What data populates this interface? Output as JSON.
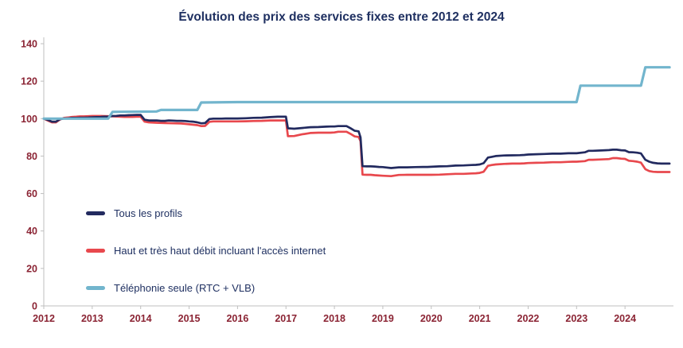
{
  "chart_data": {
    "type": "line",
    "title": "Évolution des prix des services fixes entre 2012 et 2024",
    "xlabel": "",
    "ylabel": "",
    "xlim": [
      2012,
      2025
    ],
    "ylim": [
      0,
      140
    ],
    "x_ticks": [
      2012,
      2013,
      2014,
      2015,
      2016,
      2017,
      2018,
      2019,
      2020,
      2021,
      2022,
      2023,
      2024
    ],
    "y_ticks": [
      0,
      20,
      40,
      60,
      80,
      100,
      120,
      140
    ],
    "grid": false,
    "legend_position": "inside-bottom-left",
    "colors": {
      "title": "#1f3061",
      "axis_label": "#8b2434",
      "axis_line": "#bfbfbf",
      "legend_text": "#1f3061"
    },
    "series": [
      {
        "name": "Tous les profils",
        "color": "#222a5f",
        "points": [
          [
            2012.0,
            100
          ],
          [
            2012.08,
            99.3
          ],
          [
            2012.17,
            98.4
          ],
          [
            2012.25,
            98.4
          ],
          [
            2012.33,
            99.6
          ],
          [
            2012.42,
            100.1
          ],
          [
            2012.5,
            100.2
          ],
          [
            2012.58,
            100.4
          ],
          [
            2012.67,
            100.4
          ],
          [
            2012.75,
            100.5
          ],
          [
            2012.83,
            100.5
          ],
          [
            2012.92,
            100.6
          ],
          [
            2013.0,
            100.7
          ],
          [
            2013.08,
            100.8
          ],
          [
            2013.17,
            100.9
          ],
          [
            2013.25,
            101.0
          ],
          [
            2013.33,
            101.1
          ],
          [
            2013.42,
            101.4
          ],
          [
            2013.5,
            101.5
          ],
          [
            2013.58,
            101.7
          ],
          [
            2013.67,
            101.7
          ],
          [
            2013.75,
            101.8
          ],
          [
            2013.83,
            101.9
          ],
          [
            2013.92,
            102.0
          ],
          [
            2014.0,
            102.0
          ],
          [
            2014.08,
            99.4
          ],
          [
            2014.17,
            99.0
          ],
          [
            2014.25,
            99.0
          ],
          [
            2014.33,
            99.0
          ],
          [
            2014.42,
            98.8
          ],
          [
            2014.5,
            98.8
          ],
          [
            2014.58,
            99.0
          ],
          [
            2014.67,
            98.9
          ],
          [
            2014.75,
            98.8
          ],
          [
            2014.83,
            98.8
          ],
          [
            2014.92,
            98.7
          ],
          [
            2015.0,
            98.5
          ],
          [
            2015.08,
            98.4
          ],
          [
            2015.17,
            98.0
          ],
          [
            2015.25,
            97.5
          ],
          [
            2015.33,
            97.6
          ],
          [
            2015.42,
            99.8
          ],
          [
            2015.5,
            100.0
          ],
          [
            2015.58,
            100.0
          ],
          [
            2015.67,
            100.0
          ],
          [
            2015.75,
            100.1
          ],
          [
            2015.83,
            100.1
          ],
          [
            2015.92,
            100.1
          ],
          [
            2016.0,
            100.1
          ],
          [
            2016.17,
            100.2
          ],
          [
            2016.33,
            100.4
          ],
          [
            2016.5,
            100.5
          ],
          [
            2016.67,
            100.8
          ],
          [
            2016.83,
            101.0
          ],
          [
            2016.92,
            101.0
          ],
          [
            2017.0,
            101.0
          ],
          [
            2017.04,
            94.8
          ],
          [
            2017.17,
            94.6
          ],
          [
            2017.33,
            95.0
          ],
          [
            2017.5,
            95.4
          ],
          [
            2017.67,
            95.5
          ],
          [
            2017.83,
            95.7
          ],
          [
            2017.92,
            95.8
          ],
          [
            2018.0,
            95.8
          ],
          [
            2018.08,
            96.0
          ],
          [
            2018.17,
            96.0
          ],
          [
            2018.25,
            96.0
          ],
          [
            2018.33,
            94.9
          ],
          [
            2018.42,
            93.5
          ],
          [
            2018.5,
            93.2
          ],
          [
            2018.54,
            90.0
          ],
          [
            2018.58,
            74.6
          ],
          [
            2018.67,
            74.5
          ],
          [
            2018.75,
            74.5
          ],
          [
            2018.83,
            74.4
          ],
          [
            2018.92,
            74.2
          ],
          [
            2019.0,
            74.1
          ],
          [
            2019.17,
            73.6
          ],
          [
            2019.33,
            74.0
          ],
          [
            2019.5,
            74.0
          ],
          [
            2019.67,
            74.1
          ],
          [
            2019.83,
            74.2
          ],
          [
            2019.92,
            74.2
          ],
          [
            2020.0,
            74.3
          ],
          [
            2020.17,
            74.5
          ],
          [
            2020.33,
            74.6
          ],
          [
            2020.5,
            74.9
          ],
          [
            2020.67,
            75.0
          ],
          [
            2020.83,
            75.2
          ],
          [
            2020.92,
            75.3
          ],
          [
            2021.0,
            75.5
          ],
          [
            2021.08,
            76.2
          ],
          [
            2021.17,
            79.2
          ],
          [
            2021.25,
            79.6
          ],
          [
            2021.33,
            80.0
          ],
          [
            2021.5,
            80.3
          ],
          [
            2021.67,
            80.4
          ],
          [
            2021.83,
            80.5
          ],
          [
            2021.92,
            80.6
          ],
          [
            2022.0,
            80.8
          ],
          [
            2022.17,
            81.0
          ],
          [
            2022.33,
            81.1
          ],
          [
            2022.5,
            81.3
          ],
          [
            2022.67,
            81.3
          ],
          [
            2022.83,
            81.5
          ],
          [
            2022.92,
            81.5
          ],
          [
            2023.0,
            81.5
          ],
          [
            2023.17,
            82.0
          ],
          [
            2023.25,
            82.8
          ],
          [
            2023.33,
            82.8
          ],
          [
            2023.5,
            83.0
          ],
          [
            2023.67,
            83.2
          ],
          [
            2023.75,
            83.4
          ],
          [
            2023.83,
            83.4
          ],
          [
            2023.92,
            83.1
          ],
          [
            2024.0,
            83.0
          ],
          [
            2024.08,
            82.1
          ],
          [
            2024.17,
            82.0
          ],
          [
            2024.25,
            81.8
          ],
          [
            2024.33,
            81.4
          ],
          [
            2024.42,
            78.0
          ],
          [
            2024.5,
            77.0
          ],
          [
            2024.58,
            76.4
          ],
          [
            2024.67,
            76.1
          ],
          [
            2024.75,
            76.0
          ],
          [
            2024.83,
            76.0
          ],
          [
            2024.92,
            76.0
          ]
        ]
      },
      {
        "name": "Haut et très haut débit incluant l'accès internet",
        "color": "#e8484d",
        "points": [
          [
            2012.0,
            100
          ],
          [
            2012.08,
            99.0
          ],
          [
            2012.17,
            98.0
          ],
          [
            2012.25,
            98.0
          ],
          [
            2012.33,
            99.5
          ],
          [
            2012.42,
            100.4
          ],
          [
            2012.5,
            100.6
          ],
          [
            2012.58,
            100.9
          ],
          [
            2012.67,
            101.0
          ],
          [
            2012.75,
            101.2
          ],
          [
            2012.83,
            101.2
          ],
          [
            2012.92,
            101.3
          ],
          [
            2013.0,
            101.4
          ],
          [
            2013.17,
            101.4
          ],
          [
            2013.33,
            101.3
          ],
          [
            2013.5,
            101.1
          ],
          [
            2013.67,
            100.9
          ],
          [
            2013.83,
            100.9
          ],
          [
            2013.92,
            101.0
          ],
          [
            2014.0,
            101.0
          ],
          [
            2014.08,
            98.4
          ],
          [
            2014.17,
            98.0
          ],
          [
            2014.33,
            97.8
          ],
          [
            2014.5,
            97.6
          ],
          [
            2014.67,
            97.5
          ],
          [
            2014.83,
            97.4
          ],
          [
            2014.92,
            97.2
          ],
          [
            2015.0,
            97.0
          ],
          [
            2015.17,
            96.5
          ],
          [
            2015.25,
            96.0
          ],
          [
            2015.33,
            96.1
          ],
          [
            2015.42,
            98.3
          ],
          [
            2015.5,
            98.5
          ],
          [
            2015.67,
            98.5
          ],
          [
            2015.83,
            98.5
          ],
          [
            2015.92,
            98.5
          ],
          [
            2016.0,
            98.5
          ],
          [
            2016.17,
            98.6
          ],
          [
            2016.33,
            98.7
          ],
          [
            2016.5,
            98.8
          ],
          [
            2016.67,
            99.0
          ],
          [
            2016.83,
            99.0
          ],
          [
            2016.92,
            99.0
          ],
          [
            2017.0,
            99.0
          ],
          [
            2017.04,
            90.6
          ],
          [
            2017.17,
            90.7
          ],
          [
            2017.33,
            91.6
          ],
          [
            2017.5,
            92.3
          ],
          [
            2017.67,
            92.5
          ],
          [
            2017.83,
            92.5
          ],
          [
            2017.92,
            92.5
          ],
          [
            2018.0,
            92.6
          ],
          [
            2018.08,
            93.0
          ],
          [
            2018.17,
            93.0
          ],
          [
            2018.25,
            93.0
          ],
          [
            2018.33,
            91.9
          ],
          [
            2018.42,
            90.5
          ],
          [
            2018.5,
            90.2
          ],
          [
            2018.54,
            88.0
          ],
          [
            2018.58,
            70.1
          ],
          [
            2018.67,
            70.0
          ],
          [
            2018.75,
            70.0
          ],
          [
            2018.83,
            69.8
          ],
          [
            2018.92,
            69.6
          ],
          [
            2019.0,
            69.5
          ],
          [
            2019.17,
            69.3
          ],
          [
            2019.33,
            69.9
          ],
          [
            2019.5,
            70.0
          ],
          [
            2019.67,
            70.0
          ],
          [
            2019.83,
            70.0
          ],
          [
            2019.92,
            70.0
          ],
          [
            2020.0,
            70.0
          ],
          [
            2020.17,
            70.1
          ],
          [
            2020.33,
            70.3
          ],
          [
            2020.5,
            70.5
          ],
          [
            2020.67,
            70.5
          ],
          [
            2020.83,
            70.7
          ],
          [
            2020.92,
            70.8
          ],
          [
            2021.0,
            71.0
          ],
          [
            2021.08,
            71.6
          ],
          [
            2021.17,
            74.8
          ],
          [
            2021.25,
            75.2
          ],
          [
            2021.33,
            75.5
          ],
          [
            2021.5,
            75.8
          ],
          [
            2021.67,
            76.0
          ],
          [
            2021.83,
            76.0
          ],
          [
            2021.92,
            76.1
          ],
          [
            2022.0,
            76.3
          ],
          [
            2022.17,
            76.4
          ],
          [
            2022.33,
            76.5
          ],
          [
            2022.5,
            76.7
          ],
          [
            2022.67,
            76.7
          ],
          [
            2022.83,
            76.9
          ],
          [
            2022.92,
            77.0
          ],
          [
            2023.0,
            77.0
          ],
          [
            2023.17,
            77.3
          ],
          [
            2023.25,
            78.0
          ],
          [
            2023.33,
            78.0
          ],
          [
            2023.5,
            78.2
          ],
          [
            2023.67,
            78.4
          ],
          [
            2023.75,
            78.9
          ],
          [
            2023.83,
            78.9
          ],
          [
            2023.92,
            78.6
          ],
          [
            2024.0,
            78.5
          ],
          [
            2024.08,
            77.5
          ],
          [
            2024.17,
            77.3
          ],
          [
            2024.25,
            77.0
          ],
          [
            2024.33,
            76.5
          ],
          [
            2024.42,
            73.0
          ],
          [
            2024.5,
            72.0
          ],
          [
            2024.58,
            71.6
          ],
          [
            2024.67,
            71.5
          ],
          [
            2024.75,
            71.5
          ],
          [
            2024.83,
            71.5
          ],
          [
            2024.92,
            71.5
          ]
        ]
      },
      {
        "name": "Téléphonie seule (RTC + VLB)",
        "color": "#72b5cd",
        "points": [
          [
            2012.0,
            100.0
          ],
          [
            2013.33,
            100.0
          ],
          [
            2013.42,
            103.6
          ],
          [
            2014.33,
            103.8
          ],
          [
            2014.42,
            104.6
          ],
          [
            2015.17,
            104.6
          ],
          [
            2015.25,
            108.6
          ],
          [
            2016.0,
            108.8
          ],
          [
            2023.0,
            108.8
          ],
          [
            2023.08,
            117.6
          ],
          [
            2024.33,
            117.6
          ],
          [
            2024.42,
            127.4
          ],
          [
            2024.92,
            127.4
          ]
        ]
      }
    ]
  }
}
